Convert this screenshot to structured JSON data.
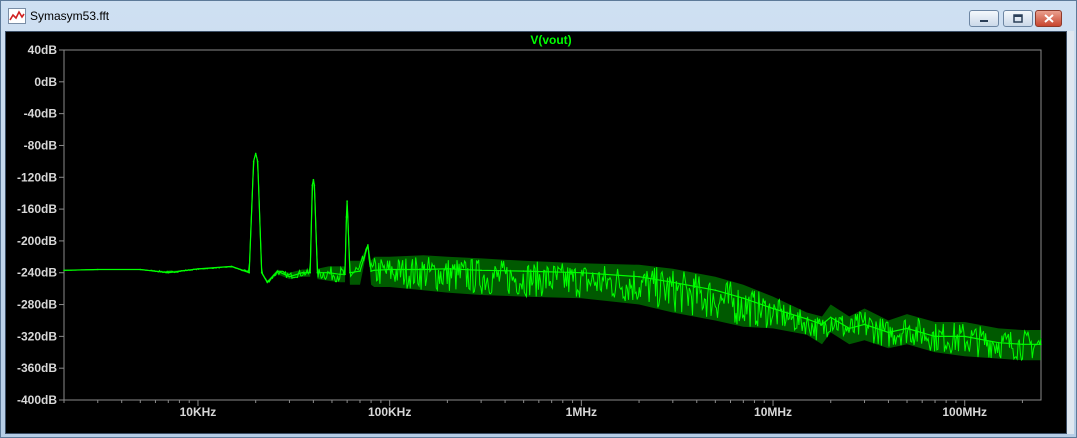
{
  "window": {
    "title": "Symasym53.fft",
    "app_icon": "waveform-icon",
    "controls": [
      "minimize-icon",
      "maximize-icon",
      "close-icon"
    ],
    "accent_color": "#00ff00",
    "plot_background": "#000000"
  },
  "chart_data": {
    "type": "line",
    "title": "V(vout)",
    "x_scale": "log",
    "xlim": [
      2000,
      250000000
    ],
    "ylim": [
      -400,
      40
    ],
    "y_ticks": [
      40,
      0,
      -40,
      -80,
      -120,
      -160,
      -200,
      -240,
      -280,
      -320,
      -360,
      -400
    ],
    "y_tick_labels": [
      "40dB",
      "0dB",
      "-40dB",
      "-80dB",
      "-120dB",
      "-160dB",
      "-200dB",
      "-240dB",
      "-280dB",
      "-320dB",
      "-360dB",
      "-400dB"
    ],
    "x_ticks": [
      10000,
      100000,
      1000000,
      10000000,
      100000000
    ],
    "x_tick_labels": [
      "10KHz",
      "100KHz",
      "1MHz",
      "10MHz",
      "100MHz"
    ],
    "grid": false,
    "series": [
      {
        "name": "V(vout)",
        "color": "#00ff00",
        "x": [
          2000,
          3000,
          5000,
          7000,
          10000,
          15000,
          18500,
          19500,
          20000,
          20500,
          21500,
          23000,
          26000,
          30000,
          35000,
          38500,
          39500,
          40000,
          40500,
          42000,
          48000,
          55000,
          58500,
          59500,
          60000,
          60500,
          62000,
          70000,
          77000,
          80000,
          83000,
          100000,
          150000,
          200000,
          300000,
          500000,
          1000000,
          2000000,
          3000000,
          5000000,
          7000000,
          10000000,
          15000000,
          18000000,
          20000000,
          25000000,
          30000000,
          40000000,
          50000000,
          70000000,
          100000000,
          150000000,
          200000000,
          250000000
        ],
        "y": [
          -237,
          -236,
          -236,
          -240,
          -235,
          -232,
          -240,
          -100,
          -90,
          -100,
          -240,
          -252,
          -238,
          -245,
          -240,
          -240,
          -130,
          -123,
          -130,
          -240,
          -240,
          -242,
          -242,
          -170,
          -150,
          -170,
          -240,
          -238,
          -205,
          -238,
          -237,
          -236,
          -236,
          -235,
          -237,
          -238,
          -240,
          -245,
          -252,
          -262,
          -272,
          -285,
          -298,
          -305,
          -296,
          -310,
          -305,
          -315,
          -310,
          -320,
          -320,
          -328,
          -330,
          -330
        ],
        "upper": [
          -237,
          -236,
          -236,
          -238,
          -235,
          -232,
          -238,
          -100,
          -90,
          -100,
          -238,
          -250,
          -236,
          -240,
          -236,
          -236,
          -130,
          -123,
          -130,
          -235,
          -232,
          -232,
          -232,
          -170,
          -150,
          -170,
          -225,
          -225,
          -205,
          -225,
          -220,
          -220,
          -218,
          -220,
          -222,
          -225,
          -228,
          -230,
          -235,
          -245,
          -255,
          -270,
          -290,
          -295,
          -280,
          -295,
          -285,
          -300,
          -292,
          -302,
          -302,
          -310,
          -312,
          -312
        ],
        "lower": [
          -237,
          -236,
          -236,
          -241,
          -236,
          -233,
          -241,
          -100,
          -91,
          -100,
          -242,
          -254,
          -242,
          -248,
          -245,
          -245,
          -130,
          -124,
          -130,
          -248,
          -250,
          -252,
          -252,
          -170,
          -151,
          -170,
          -255,
          -255,
          -206,
          -255,
          -258,
          -258,
          -262,
          -265,
          -268,
          -270,
          -272,
          -280,
          -290,
          -300,
          -308,
          -310,
          -318,
          -330,
          -315,
          -330,
          -325,
          -335,
          -330,
          -340,
          -345,
          -348,
          -350,
          -350
        ]
      }
    ]
  }
}
